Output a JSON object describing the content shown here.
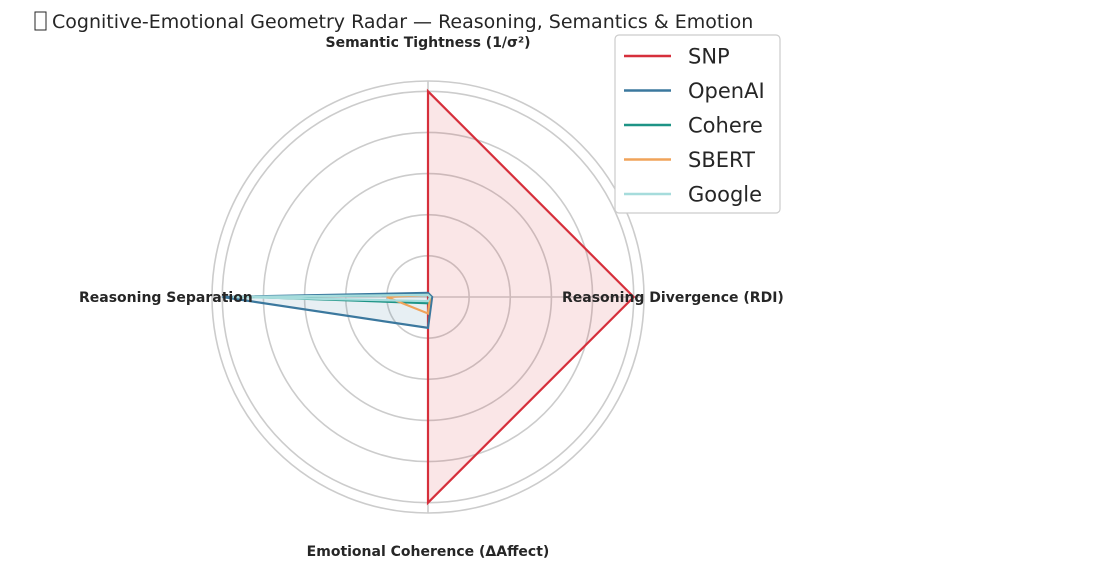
{
  "chart_data": {
    "type": "radar",
    "title": "Cognitive-Emotional Geometry Radar — Reasoning, Semantics & Emotion",
    "title_icon": "brain-icon",
    "axes": [
      "Semantic Tightness (1/σ²)",
      "Reasoning Divergence (RDI)",
      "Emotional Coherence (ΔAffect)",
      "Reasoning Separation"
    ],
    "rlim": [
      0,
      1.05
    ],
    "ring_values": [
      0.2,
      0.4,
      0.6,
      0.8,
      1.0,
      1.05
    ],
    "grid": true,
    "legend_position": "top-right",
    "series": [
      {
        "name": "SNP",
        "color": "#d62f3b",
        "fill": true,
        "values": [
          1.0,
          1.0,
          1.0,
          0.0
        ]
      },
      {
        "name": "OpenAI",
        "color": "#3b789e",
        "fill": true,
        "values": [
          0.02,
          0.02,
          0.15,
          1.0
        ]
      },
      {
        "name": "Cohere",
        "color": "#1e9486",
        "fill": false,
        "values": [
          0.01,
          0.01,
          0.03,
          0.85
        ]
      },
      {
        "name": "SBERT",
        "color": "#f0a35a",
        "fill": false,
        "values": [
          0.01,
          0.01,
          0.08,
          0.2
        ]
      },
      {
        "name": "Google",
        "color": "#a6dcdc",
        "fill": false,
        "values": [
          0.01,
          0.01,
          0.02,
          0.95
        ]
      }
    ]
  }
}
